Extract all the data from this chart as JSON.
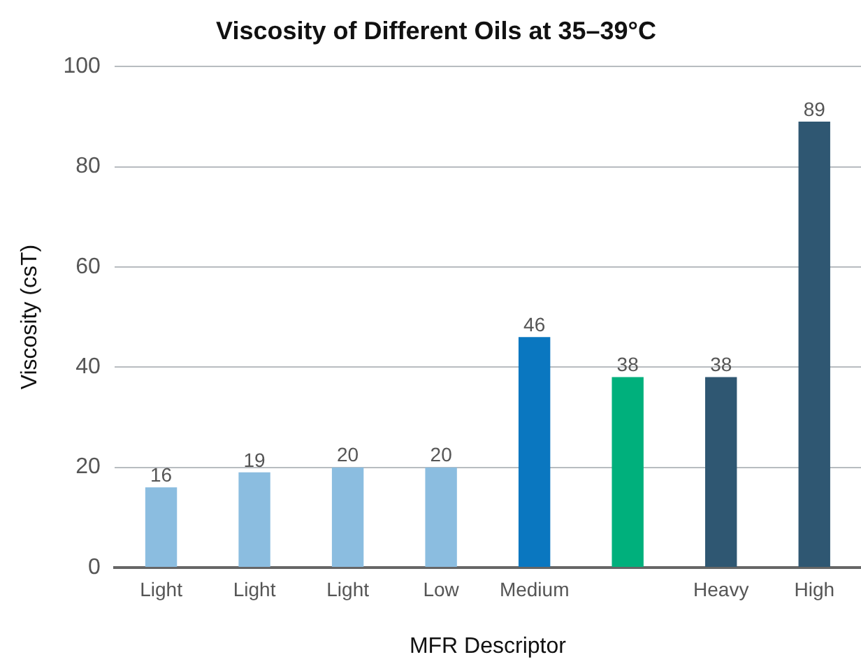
{
  "chart_data": {
    "type": "bar",
    "title": "Viscosity of Different Oils at 35–39°C",
    "xlabel": "MFR Descriptor",
    "ylabel": "Viscosity (csT)",
    "categories": [
      "Light",
      "Light",
      "Light",
      "Low",
      "Medium",
      null,
      "Heavy",
      "High"
    ],
    "values": [
      16,
      19,
      20,
      20,
      46,
      38,
      38,
      89
    ],
    "colors": [
      "#8bbde0",
      "#8bbde0",
      "#8bbde0",
      "#8bbde0",
      "#0a77c0",
      "#00b07c",
      "#2f5772",
      "#2f5772"
    ],
    "ylim": [
      0,
      100
    ],
    "yticks": [
      0,
      20,
      40,
      60,
      80,
      100
    ],
    "grid": "y",
    "data_labels": true
  }
}
